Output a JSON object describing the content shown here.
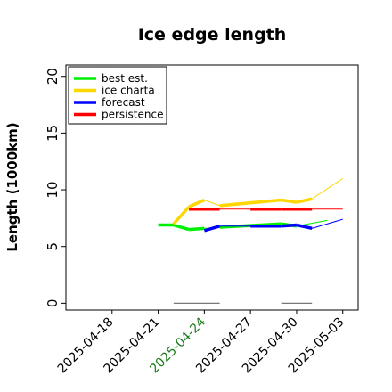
{
  "chart_data": {
    "type": "line",
    "title": "Ice edge length",
    "xlabel": "",
    "ylabel": "Length (1000km)",
    "xlim": [
      "2025-04-15",
      "2025-05-04"
    ],
    "ylim": [
      -0.6,
      21
    ],
    "x_ticks": [
      {
        "date": "2025-04-18",
        "label": "2025-04-18",
        "color": "#000000"
      },
      {
        "date": "2025-04-21",
        "label": "2025-04-21",
        "color": "#000000"
      },
      {
        "date": "2025-04-24",
        "label": "2025-04-24",
        "color": "#1a7a1a"
      },
      {
        "date": "2025-04-27",
        "label": "2025-04-27",
        "color": "#000000"
      },
      {
        "date": "2025-04-30",
        "label": "2025-04-30",
        "color": "#000000"
      },
      {
        "date": "2025-05-03",
        "label": "2025-05-03",
        "color": "#000000"
      }
    ],
    "y_ticks": [
      {
        "value": 0,
        "label": "0"
      },
      {
        "value": 5,
        "label": "5"
      },
      {
        "value": 10,
        "label": "10"
      },
      {
        "value": 15,
        "label": "15"
      },
      {
        "value": 20,
        "label": "20"
      }
    ],
    "grid": false,
    "legend_position": "top-left",
    "series": [
      {
        "name": "best est.",
        "color": "#00ee00",
        "points": [
          {
            "x": "2025-04-21",
            "y": 6.9,
            "w": 3.5
          },
          {
            "x": "2025-04-22",
            "y": 6.9,
            "w": 3.5
          },
          {
            "x": "2025-04-23",
            "y": 6.5,
            "w": 3.5
          },
          {
            "x": "2025-04-24",
            "y": 6.6,
            "w": 3.5
          },
          {
            "x": "2025-04-25",
            "y": 6.7,
            "w": 1
          },
          {
            "x": "2025-04-29",
            "y": 7.0,
            "w": 3.5
          },
          {
            "x": "2025-04-30",
            "y": 6.8,
            "w": 3.5
          },
          {
            "x": "2025-05-02",
            "y": 7.3,
            "w": 1
          }
        ]
      },
      {
        "name": "ice charta",
        "color": "#ffd700",
        "points": [
          {
            "x": "2025-04-22",
            "y": 7.0,
            "w": 3.5
          },
          {
            "x": "2025-04-23",
            "y": 8.5,
            "w": 3.5
          },
          {
            "x": "2025-04-24",
            "y": 9.1,
            "w": 3.5
          },
          {
            "x": "2025-04-25",
            "y": 8.6,
            "w": 1
          },
          {
            "x": "2025-04-29",
            "y": 9.1,
            "w": 3.5
          },
          {
            "x": "2025-04-30",
            "y": 8.9,
            "w": 3.5
          },
          {
            "x": "2025-05-01",
            "y": 9.2,
            "w": 3.5
          },
          {
            "x": "2025-05-03",
            "y": 11.0,
            "w": 1
          }
        ]
      },
      {
        "name": "forecast",
        "color": "#0000ff",
        "points": [
          {
            "x": "2025-04-24",
            "y": 6.4,
            "w": 3.5
          },
          {
            "x": "2025-04-25",
            "y": 6.8,
            "w": 3.5
          },
          {
            "x": "2025-04-27",
            "y": 6.8,
            "w": 1
          },
          {
            "x": "2025-04-29",
            "y": 6.8,
            "w": 3.5
          },
          {
            "x": "2025-04-30",
            "y": 6.9,
            "w": 3.5
          },
          {
            "x": "2025-05-01",
            "y": 6.6,
            "w": 3.5
          },
          {
            "x": "2025-05-03",
            "y": 7.4,
            "w": 1
          }
        ]
      },
      {
        "name": "persistence",
        "color": "#ff0000",
        "points": [
          {
            "x": "2025-04-23",
            "y": 8.3,
            "w": 3.5
          },
          {
            "x": "2025-04-25",
            "y": 8.3,
            "w": 3.5
          },
          {
            "x": "2025-04-27",
            "y": 8.3,
            "w": 1
          },
          {
            "x": "2025-04-29",
            "y": 8.3,
            "w": 3.5
          },
          {
            "x": "2025-05-01",
            "y": 8.3,
            "w": 3.5
          },
          {
            "x": "2025-05-03",
            "y": 8.3,
            "w": 1
          }
        ]
      }
    ],
    "baseline_segments": [
      {
        "x0": "2025-04-22",
        "x1": "2025-04-25",
        "y": 0,
        "color": "#777777"
      },
      {
        "x0": "2025-04-29",
        "x1": "2025-05-01",
        "y": 0,
        "color": "#777777"
      }
    ]
  }
}
